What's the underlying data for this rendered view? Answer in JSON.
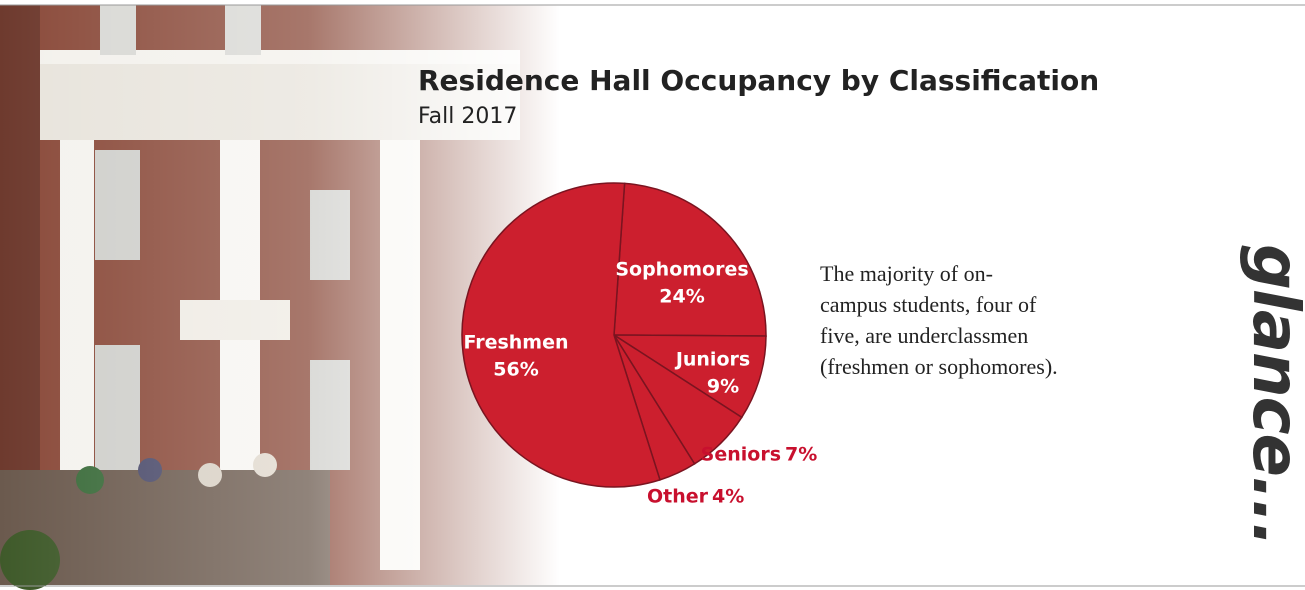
{
  "chart_data": {
    "type": "pie",
    "title": "Residence Hall Occupancy by Classification",
    "subtitle": "Fall 2017",
    "categories": [
      "Sophomores",
      "Juniors",
      "Seniors",
      "Other",
      "Freshmen"
    ],
    "values": [
      24,
      9,
      7,
      4,
      56
    ],
    "value_labels": [
      "24%",
      "9%",
      "7%",
      "4%",
      "56%"
    ],
    "color": "#cc1f2e",
    "annotation": "The majority of on-campus students, four of five, are underclassmen (freshmen or sophomores).",
    "side_text": "glance..."
  }
}
